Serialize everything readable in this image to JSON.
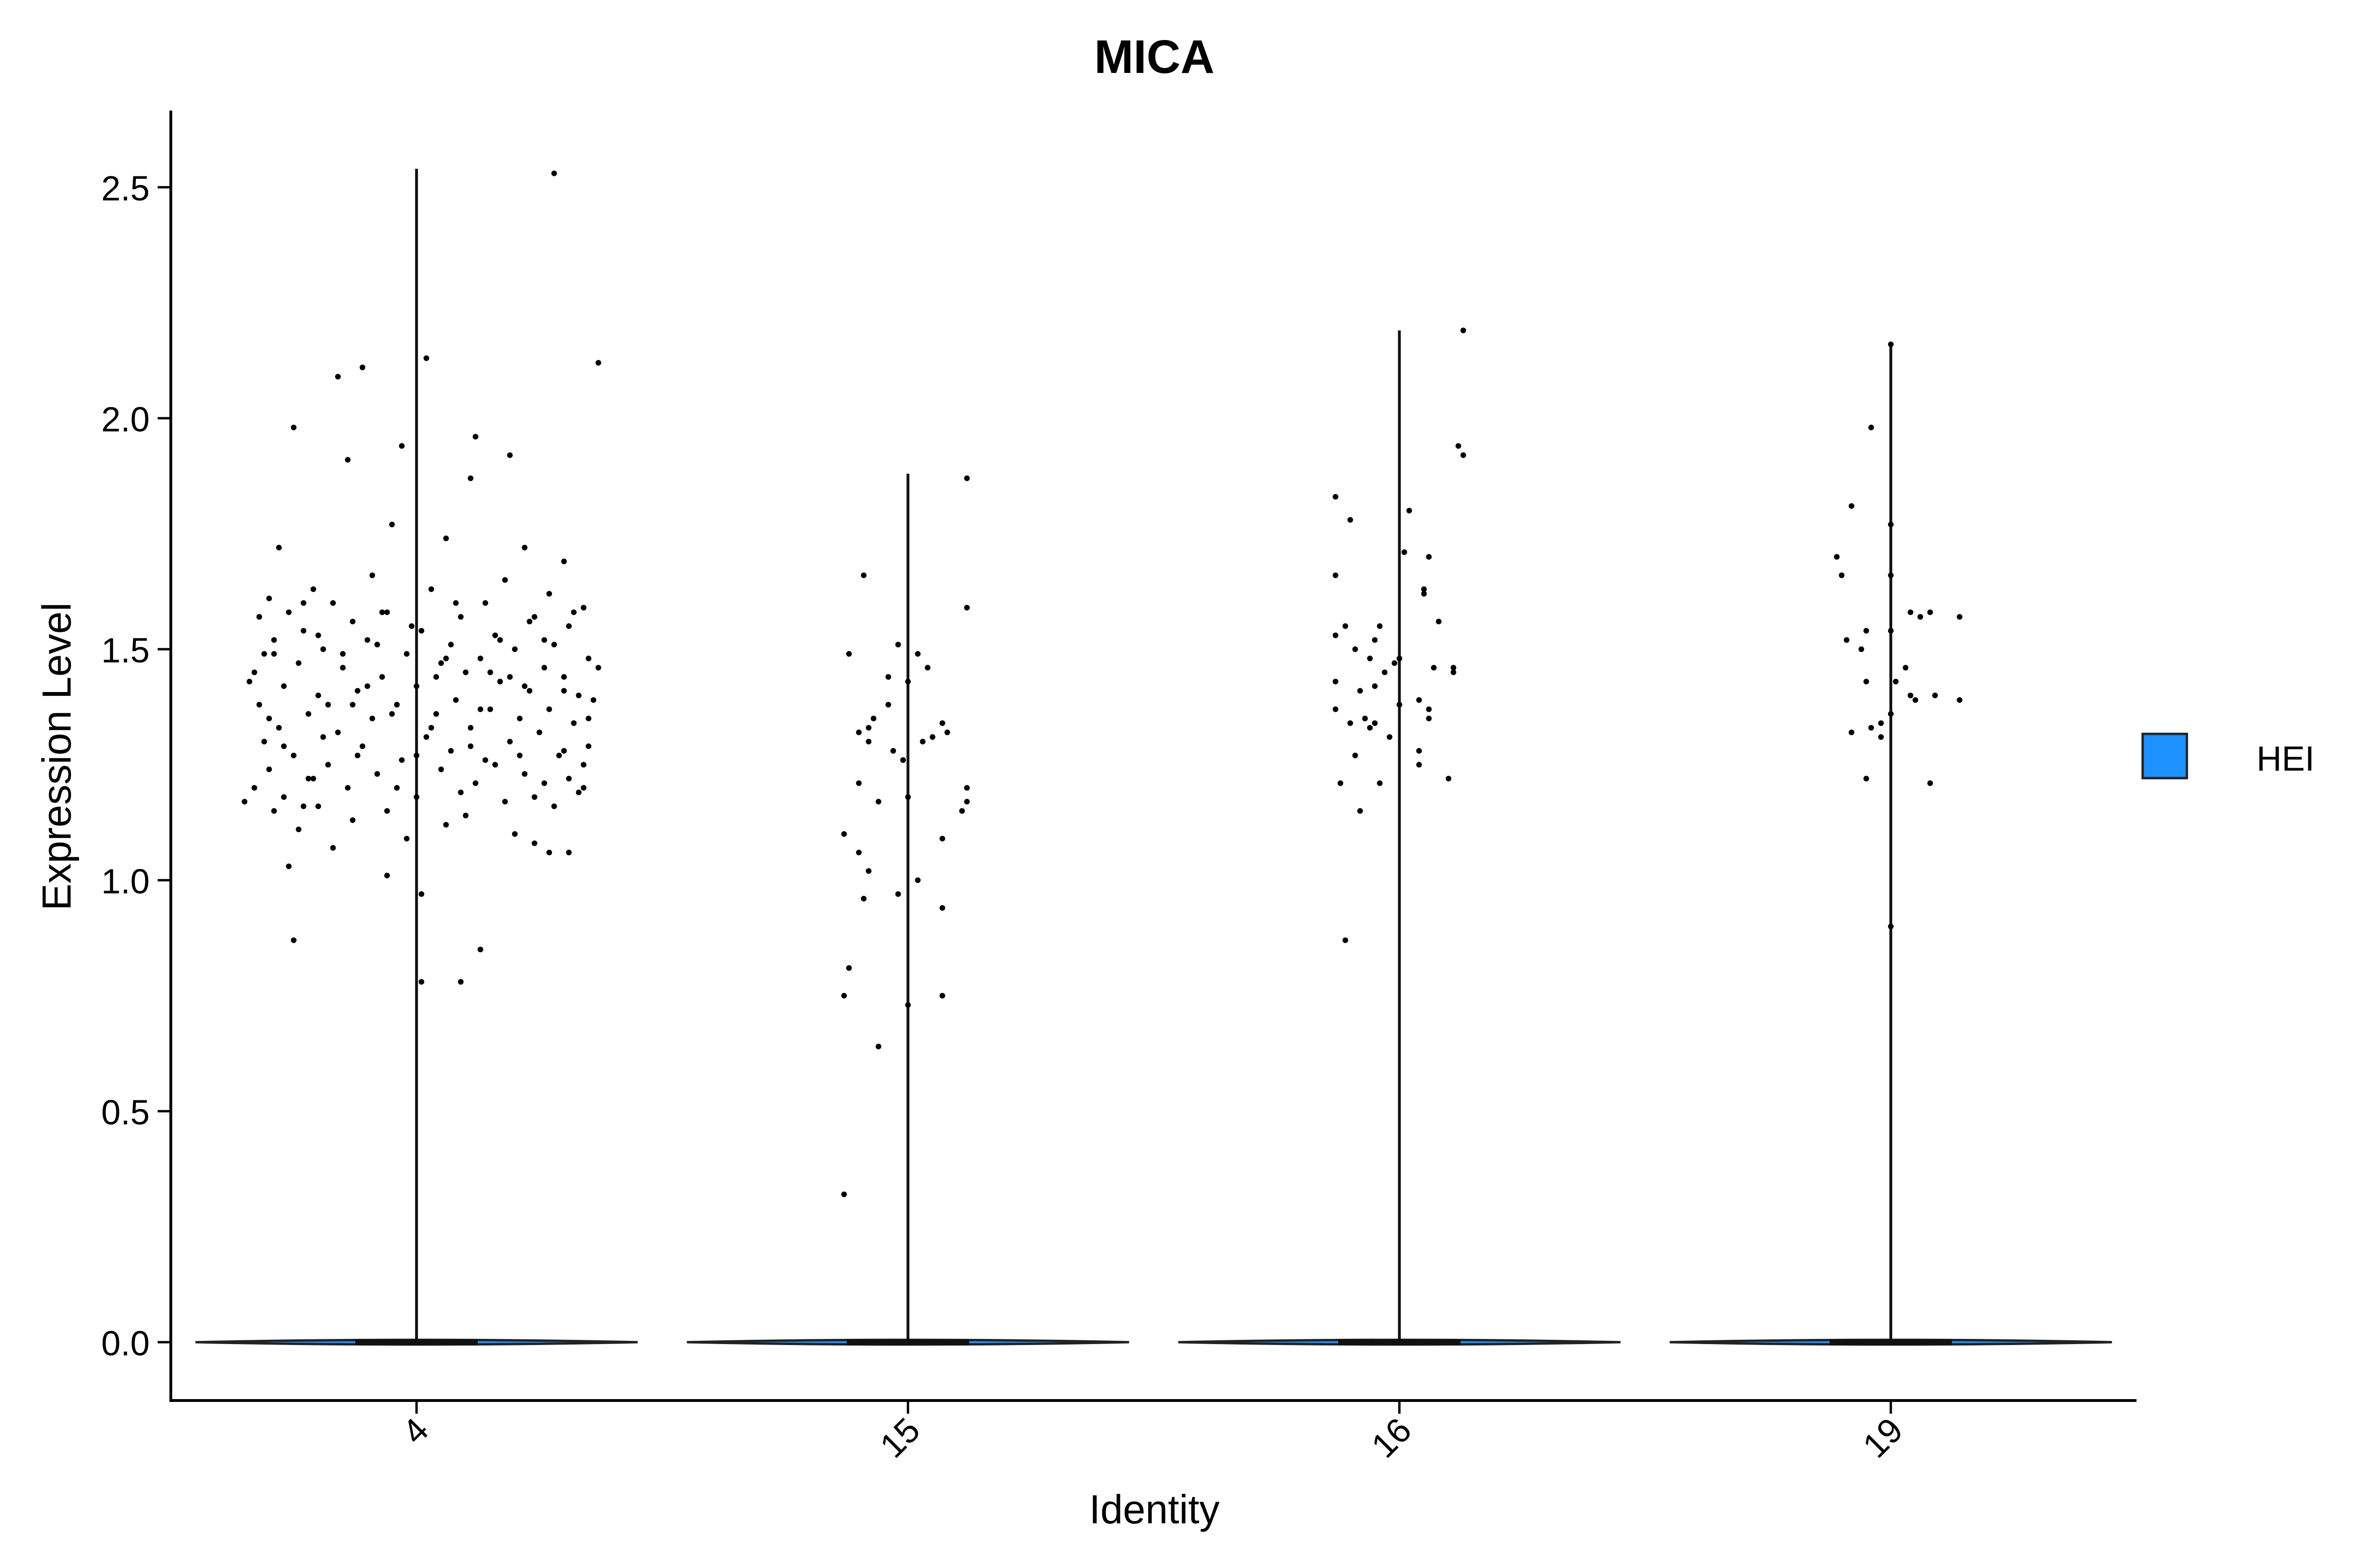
{
  "chart_data": {
    "type": "violin",
    "title": "MICA",
    "xlabel": "Identity",
    "ylabel": "Expression Level",
    "categories": [
      "4",
      "15",
      "16",
      "19"
    ],
    "ylim": [
      -0.12,
      2.67
    ],
    "yticks": [
      "0.0",
      "0.5",
      "1.0",
      "1.5",
      "2.0",
      "2.5"
    ],
    "legend": {
      "position": "right",
      "items": [
        {
          "label": "HEI",
          "color": "#1E90FF"
        }
      ]
    },
    "grid": false,
    "series": [
      {
        "name": "HEI",
        "color": "#1E90FF",
        "violin_max": [
          2.54,
          1.88,
          2.19,
          2.16
        ],
        "points": [
          [
            [
              0.28,
              2.53
            ],
            [
              -0.11,
              2.11
            ],
            [
              0.02,
              2.13
            ],
            [
              0.37,
              2.12
            ],
            [
              -0.16,
              2.09
            ],
            [
              -0.25,
              1.98
            ],
            [
              0.12,
              1.96
            ],
            [
              -0.03,
              1.94
            ],
            [
              0.19,
              1.92
            ],
            [
              -0.14,
              1.91
            ],
            [
              0.11,
              1.87
            ],
            [
              -0.05,
              1.77
            ],
            [
              0.06,
              1.74
            ],
            [
              -0.28,
              1.72
            ],
            [
              0.22,
              1.72
            ],
            [
              0.3,
              1.69
            ],
            [
              -0.09,
              1.66
            ],
            [
              0.18,
              1.65
            ],
            [
              -0.21,
              1.63
            ],
            [
              0.03,
              1.63
            ],
            [
              0.27,
              1.62
            ],
            [
              -0.3,
              1.61
            ],
            [
              -0.17,
              1.6
            ],
            [
              0.14,
              1.6
            ],
            [
              0.34,
              1.59
            ],
            [
              -0.26,
              1.58
            ],
            [
              -0.06,
              1.58
            ],
            [
              0.09,
              1.57
            ],
            [
              0.24,
              1.57
            ],
            [
              -0.13,
              1.56
            ],
            [
              0.31,
              1.55
            ],
            [
              -0.23,
              1.54
            ],
            [
              0.01,
              1.54
            ],
            [
              0.16,
              1.53
            ],
            [
              -0.29,
              1.52
            ],
            [
              -0.1,
              1.52
            ],
            [
              0.07,
              1.51
            ],
            [
              0.28,
              1.51
            ],
            [
              -0.19,
              1.5
            ],
            [
              0.2,
              1.5
            ],
            [
              -0.31,
              1.49
            ],
            [
              -0.02,
              1.49
            ],
            [
              0.13,
              1.48
            ],
            [
              0.35,
              1.48
            ],
            [
              -0.24,
              1.47
            ],
            [
              0.05,
              1.47
            ],
            [
              0.26,
              1.46
            ],
            [
              -0.15,
              1.46
            ],
            [
              -0.33,
              1.45
            ],
            [
              0.1,
              1.45
            ],
            [
              0.3,
              1.44
            ],
            [
              -0.07,
              1.44
            ],
            [
              0.17,
              1.43
            ],
            [
              -0.27,
              1.42
            ],
            [
              0.0,
              1.42
            ],
            [
              0.23,
              1.41
            ],
            [
              -0.12,
              1.41
            ],
            [
              0.33,
              1.4
            ],
            [
              -0.2,
              1.4
            ],
            [
              0.08,
              1.39
            ],
            [
              0.36,
              1.39
            ],
            [
              -0.32,
              1.38
            ],
            [
              -0.04,
              1.38
            ],
            [
              0.15,
              1.37
            ],
            [
              0.27,
              1.37
            ],
            [
              -0.22,
              1.36
            ],
            [
              0.04,
              1.36
            ],
            [
              -0.09,
              1.35
            ],
            [
              0.21,
              1.35
            ],
            [
              0.32,
              1.34
            ],
            [
              -0.28,
              1.33
            ],
            [
              0.11,
              1.33
            ],
            [
              -0.16,
              1.32
            ],
            [
              0.25,
              1.32
            ],
            [
              0.02,
              1.31
            ],
            [
              -0.31,
              1.3
            ],
            [
              0.19,
              1.3
            ],
            [
              0.35,
              1.29
            ],
            [
              -0.11,
              1.29
            ],
            [
              0.07,
              1.28
            ],
            [
              -0.25,
              1.27
            ],
            [
              0.29,
              1.27
            ],
            [
              -0.03,
              1.26
            ],
            [
              0.14,
              1.26
            ],
            [
              -0.18,
              1.25
            ],
            [
              0.34,
              1.25
            ],
            [
              -0.3,
              1.24
            ],
            [
              0.05,
              1.24
            ],
            [
              0.22,
              1.23
            ],
            [
              -0.08,
              1.23
            ],
            [
              0.31,
              1.22
            ],
            [
              -0.21,
              1.22
            ],
            [
              0.12,
              1.21
            ],
            [
              0.26,
              1.21
            ],
            [
              -0.14,
              1.2
            ],
            [
              -0.33,
              1.2
            ],
            [
              0.09,
              1.19
            ],
            [
              0.33,
              1.19
            ],
            [
              -0.27,
              1.18
            ],
            [
              0.0,
              1.18
            ],
            [
              0.18,
              1.17
            ],
            [
              -0.35,
              1.17
            ],
            [
              -0.2,
              1.16
            ],
            [
              0.28,
              1.16
            ],
            [
              -0.06,
              1.15
            ],
            [
              -0.29,
              1.15
            ],
            [
              0.1,
              1.14
            ],
            [
              -0.13,
              1.13
            ],
            [
              0.06,
              1.12
            ],
            [
              -0.24,
              1.11
            ],
            [
              0.2,
              1.1
            ],
            [
              -0.02,
              1.09
            ],
            [
              0.24,
              1.08
            ],
            [
              -0.17,
              1.07
            ],
            [
              0.31,
              1.06
            ],
            [
              0.27,
              1.06
            ],
            [
              -0.26,
              1.03
            ],
            [
              -0.06,
              1.01
            ],
            [
              0.01,
              0.97
            ],
            [
              -0.25,
              0.87
            ],
            [
              0.13,
              0.85
            ],
            [
              0.01,
              0.78
            ],
            [
              0.09,
              0.78
            ],
            [
              -0.23,
              1.6
            ],
            [
              0.19,
              1.44
            ],
            [
              -0.01,
              1.55
            ],
            [
              0.16,
              1.25
            ],
            [
              -0.18,
              1.38
            ],
            [
              0.3,
              1.41
            ],
            [
              -0.12,
              1.27
            ],
            [
              0.04,
              1.44
            ],
            [
              -0.3,
              1.35
            ],
            [
              0.23,
              1.56
            ],
            [
              -0.08,
              1.51
            ],
            [
              0.13,
              1.37
            ],
            [
              -0.22,
              1.22
            ],
            [
              0.35,
              1.35
            ],
            [
              -0.04,
              1.2
            ],
            [
              0.21,
              1.27
            ],
            [
              -0.32,
              1.57
            ],
            [
              0.08,
              1.6
            ],
            [
              -0.15,
              1.49
            ],
            [
              0.3,
              1.28
            ],
            [
              -0.27,
              1.29
            ],
            [
              0.15,
              1.45
            ],
            [
              -0.1,
              1.42
            ],
            [
              0.26,
              1.52
            ],
            [
              0.03,
              1.33
            ],
            [
              -0.19,
              1.31
            ],
            [
              0.37,
              1.46
            ],
            [
              -0.34,
              1.43
            ],
            [
              0.11,
              1.29
            ],
            [
              -0.07,
              1.58
            ],
            [
              0.24,
              1.18
            ],
            [
              -0.23,
              1.16
            ],
            [
              0.06,
              1.48
            ],
            [
              0.32,
              1.58
            ],
            [
              -0.13,
              1.38
            ],
            [
              0.17,
              1.52
            ],
            [
              -0.29,
              1.49
            ],
            [
              0.0,
              1.27
            ],
            [
              0.22,
              1.42
            ],
            [
              -0.2,
              1.53
            ],
            [
              0.34,
              1.2
            ],
            [
              -0.05,
              1.36
            ]
          ],
          [
            [
              0.12,
              1.87
            ],
            [
              -0.09,
              1.66
            ],
            [
              0.12,
              1.59
            ],
            [
              -0.02,
              1.51
            ],
            [
              0.02,
              1.49
            ],
            [
              -0.12,
              1.49
            ],
            [
              0.04,
              1.46
            ],
            [
              -0.04,
              1.44
            ],
            [
              0.0,
              1.43
            ],
            [
              0.07,
              1.34
            ],
            [
              -0.07,
              1.35
            ],
            [
              -0.1,
              1.32
            ],
            [
              0.08,
              1.32
            ],
            [
              0.03,
              1.3
            ],
            [
              -0.08,
              1.3
            ],
            [
              -0.03,
              1.28
            ],
            [
              -0.01,
              1.26
            ],
            [
              0.12,
              1.2
            ],
            [
              -0.1,
              1.21
            ],
            [
              -0.06,
              1.17
            ],
            [
              0.12,
              1.17
            ],
            [
              -0.13,
              1.1
            ],
            [
              -0.1,
              1.06
            ],
            [
              0.07,
              1.09
            ],
            [
              0.02,
              1.0
            ],
            [
              -0.08,
              1.02
            ],
            [
              -0.09,
              0.96
            ],
            [
              -0.02,
              0.97
            ],
            [
              0.07,
              0.94
            ],
            [
              -0.12,
              0.81
            ],
            [
              -0.13,
              0.75
            ],
            [
              0.07,
              0.75
            ],
            [
              0.0,
              0.73
            ],
            [
              -0.06,
              0.64
            ],
            [
              -0.13,
              0.32
            ],
            [
              0.05,
              1.31
            ],
            [
              -0.04,
              1.38
            ],
            [
              0.11,
              1.15
            ],
            [
              0.0,
              1.18
            ],
            [
              -0.08,
              1.33
            ]
          ],
          [
            [
              0.13,
              2.19
            ],
            [
              0.12,
              1.94
            ],
            [
              0.13,
              1.92
            ],
            [
              -0.13,
              1.83
            ],
            [
              0.02,
              1.8
            ],
            [
              -0.1,
              1.78
            ],
            [
              0.01,
              1.71
            ],
            [
              0.06,
              1.7
            ],
            [
              -0.13,
              1.66
            ],
            [
              0.05,
              1.63
            ],
            [
              0.05,
              1.62
            ],
            [
              0.08,
              1.56
            ],
            [
              -0.11,
              1.55
            ],
            [
              -0.04,
              1.55
            ],
            [
              -0.13,
              1.53
            ],
            [
              -0.09,
              1.5
            ],
            [
              -0.06,
              1.48
            ],
            [
              0.0,
              1.48
            ],
            [
              -0.01,
              1.47
            ],
            [
              0.11,
              1.46
            ],
            [
              0.11,
              1.45
            ],
            [
              -0.13,
              1.43
            ],
            [
              -0.05,
              1.42
            ],
            [
              -0.08,
              1.41
            ],
            [
              0.04,
              1.39
            ],
            [
              0.06,
              1.37
            ],
            [
              -0.13,
              1.37
            ],
            [
              0.0,
              1.38
            ],
            [
              -0.07,
              1.35
            ],
            [
              0.06,
              1.35
            ],
            [
              -0.1,
              1.34
            ],
            [
              -0.05,
              1.34
            ],
            [
              -0.06,
              1.33
            ],
            [
              -0.02,
              1.31
            ],
            [
              0.04,
              1.28
            ],
            [
              -0.09,
              1.27
            ],
            [
              0.04,
              1.25
            ],
            [
              -0.12,
              1.21
            ],
            [
              -0.04,
              1.21
            ],
            [
              0.1,
              1.22
            ],
            [
              -0.08,
              1.15
            ],
            [
              -0.11,
              0.87
            ],
            [
              -0.03,
              1.45
            ],
            [
              0.07,
              1.46
            ],
            [
              -0.05,
              1.52
            ]
          ],
          [
            [
              0.0,
              2.16
            ],
            [
              -0.04,
              1.98
            ],
            [
              -0.08,
              1.81
            ],
            [
              0.0,
              1.77
            ],
            [
              -0.11,
              1.7
            ],
            [
              -0.1,
              1.66
            ],
            [
              0.0,
              1.66
            ],
            [
              0.04,
              1.58
            ],
            [
              0.08,
              1.58
            ],
            [
              0.14,
              1.57
            ],
            [
              0.06,
              1.57
            ],
            [
              -0.05,
              1.54
            ],
            [
              0.0,
              1.54
            ],
            [
              -0.09,
              1.52
            ],
            [
              -0.06,
              1.5
            ],
            [
              0.03,
              1.46
            ],
            [
              -0.05,
              1.43
            ],
            [
              0.01,
              1.43
            ],
            [
              0.09,
              1.4
            ],
            [
              0.04,
              1.4
            ],
            [
              0.14,
              1.39
            ],
            [
              0.0,
              1.36
            ],
            [
              -0.02,
              1.34
            ],
            [
              -0.04,
              1.33
            ],
            [
              -0.08,
              1.32
            ],
            [
              -0.02,
              1.31
            ],
            [
              -0.05,
              1.22
            ],
            [
              0.08,
              1.21
            ],
            [
              0.0,
              0.9
            ],
            [
              0.05,
              1.39
            ]
          ]
        ]
      }
    ]
  }
}
